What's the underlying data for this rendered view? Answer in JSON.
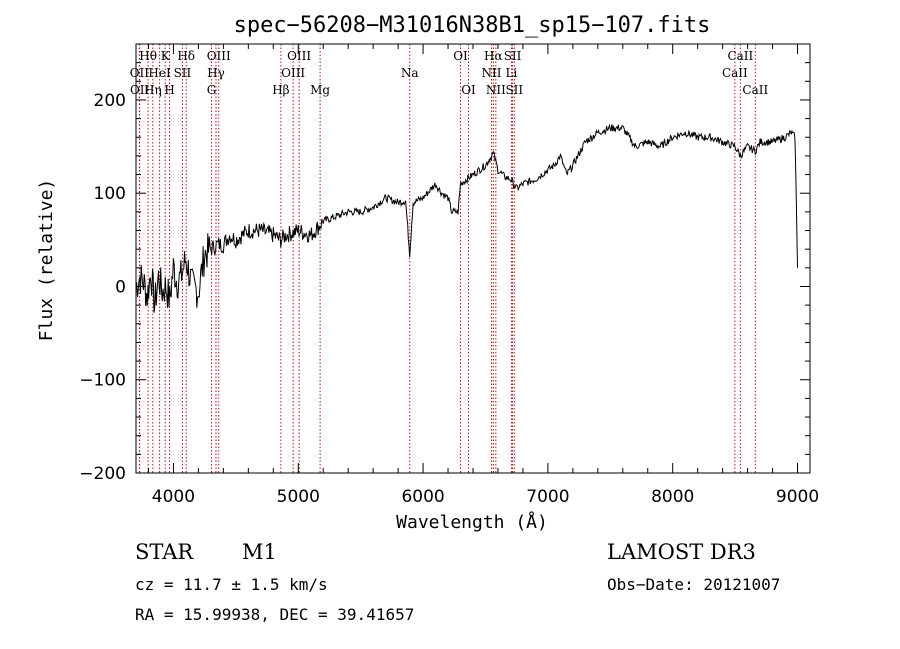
{
  "chart_data": {
    "type": "line",
    "title": "spec−56208−M31016N38B1_sp15−107.fits",
    "xlabel": "Wavelength (Å)",
    "ylabel": "Flux (relative)",
    "xlim": [
      3700,
      9100
    ],
    "ylim": [
      -200,
      260
    ],
    "x_ticks": [
      4000,
      5000,
      6000,
      7000,
      8000,
      9000
    ],
    "y_ticks": [
      -200,
      -100,
      0,
      100,
      200
    ],
    "x_tick_labels": [
      "4000",
      "5000",
      "6000",
      "7000",
      "8000",
      "9000"
    ],
    "y_tick_labels": [
      "−200",
      "−100",
      "0",
      "100",
      "200"
    ],
    "series": [
      {
        "name": "flux",
        "x": [
          3700,
          3730,
          3760,
          3790,
          3820,
          3850,
          3880,
          3910,
          3940,
          3970,
          4000,
          4030,
          4060,
          4100,
          4150,
          4200,
          4250,
          4300,
          4350,
          4400,
          4450,
          4500,
          4600,
          4700,
          4800,
          4860,
          4900,
          5000,
          5100,
          5200,
          5300,
          5400,
          5500,
          5600,
          5700,
          5800,
          5860,
          5893,
          5920,
          6000,
          6100,
          6150,
          6200,
          6230,
          6280,
          6300,
          6400,
          6450,
          6500,
          6563,
          6600,
          6650,
          6700,
          6750,
          6800,
          6900,
          7000,
          7050,
          7100,
          7150,
          7200,
          7300,
          7400,
          7500,
          7600,
          7700,
          7800,
          7900,
          8000,
          8100,
          8200,
          8300,
          8400,
          8500,
          8542,
          8600,
          8662,
          8700,
          8800,
          8900,
          8950,
          8980,
          9000
        ],
        "y": [
          0,
          10,
          5,
          -10,
          15,
          -20,
          10,
          -5,
          0,
          -15,
          20,
          5,
          10,
          30,
          0,
          -5,
          35,
          40,
          45,
          45,
          55,
          50,
          60,
          60,
          55,
          50,
          55,
          60,
          55,
          70,
          75,
          80,
          80,
          85,
          95,
          90,
          92,
          35,
          90,
          95,
          110,
          100,
          95,
          80,
          80,
          110,
          120,
          125,
          130,
          143,
          125,
          118,
          115,
          105,
          110,
          115,
          125,
          130,
          140,
          120,
          130,
          155,
          165,
          170,
          170,
          150,
          155,
          150,
          160,
          165,
          160,
          160,
          155,
          150,
          140,
          150,
          145,
          155,
          155,
          160,
          165,
          160,
          20
        ]
      }
    ],
    "spectral_lines": [
      {
        "name": "Hθ",
        "wavelength": 3797,
        "row": 1
      },
      {
        "name": "OII",
        "wavelength": 3727,
        "row": 2
      },
      {
        "name": "OII",
        "wavelength": 3729,
        "row": 3
      },
      {
        "name": "HeI",
        "wavelength": 3889,
        "row": 2
      },
      {
        "name": "Hη",
        "wavelength": 3835,
        "row": 3
      },
      {
        "name": "K",
        "wavelength": 3934,
        "row": 1
      },
      {
        "name": "SII",
        "wavelength": 4072,
        "row": 2
      },
      {
        "name": "H",
        "wavelength": 3969,
        "row": 3
      },
      {
        "name": "Hδ",
        "wavelength": 4102,
        "row": 1
      },
      {
        "name": "OIII",
        "wavelength": 4363,
        "row": 1
      },
      {
        "name": "Hγ",
        "wavelength": 4341,
        "row": 2
      },
      {
        "name": "G",
        "wavelength": 4305,
        "row": 3
      },
      {
        "name": "Hβ",
        "wavelength": 4861,
        "row": 3
      },
      {
        "name": "OIII",
        "wavelength": 5007,
        "row": 1
      },
      {
        "name": "OIII",
        "wavelength": 4959,
        "row": 2
      },
      {
        "name": "Mg",
        "wavelength": 5175,
        "row": 3
      },
      {
        "name": "Na",
        "wavelength": 5893,
        "row": 2
      },
      {
        "name": "OI",
        "wavelength": 6300,
        "row": 1
      },
      {
        "name": "OI",
        "wavelength": 6364,
        "row": 3
      },
      {
        "name": "Hα",
        "wavelength": 6563,
        "row": 1
      },
      {
        "name": "NII",
        "wavelength": 6548,
        "row": 2
      },
      {
        "name": "NII",
        "wavelength": 6583,
        "row": 3
      },
      {
        "name": "SII",
        "wavelength": 6717,
        "row": 1
      },
      {
        "name": "Li",
        "wavelength": 6708,
        "row": 2
      },
      {
        "name": "SII",
        "wavelength": 6731,
        "row": 3
      },
      {
        "name": "CaII",
        "wavelength": 8542,
        "row": 1
      },
      {
        "name": "CaII",
        "wavelength": 8498,
        "row": 2
      },
      {
        "name": "CaII",
        "wavelength": 8662,
        "row": 3
      }
    ]
  },
  "info": {
    "class": "STAR",
    "subclass": "M1",
    "survey": "LAMOST DR3",
    "cz": "cz = 11.7 ± 1.5 km/s",
    "obs_date": "Obs−Date: 20121007",
    "coords": "RA =  15.99938, DEC =  39.41657"
  },
  "colors": {
    "line_marker": "#b01818",
    "spectrum": "#000000"
  }
}
